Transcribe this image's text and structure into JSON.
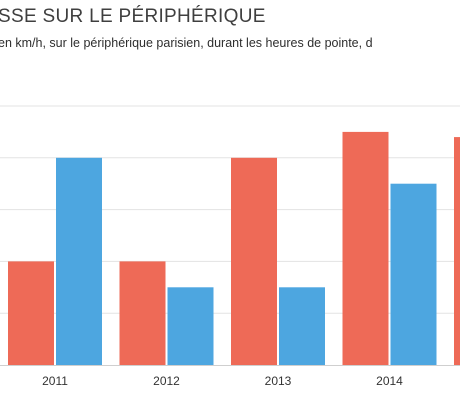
{
  "header": {
    "title": "SSE SUR LE PÉRIPHÉRIQUE",
    "subtitle": "en km/h, sur le périphérique parisien, durant les heures de pointe, d"
  },
  "chart_data": {
    "type": "bar",
    "title": "SSE SUR LE PÉRIPHÉRIQUE",
    "subtitle": "en km/h, sur le périphérique parisien, durant les heures de pointe, d",
    "categories": [
      "2011",
      "2012",
      "2013",
      "2014"
    ],
    "series": [
      {
        "color": "#ee6a57",
        "values": [
          20,
          20,
          40,
          45
        ]
      },
      {
        "color": "#4da6e0",
        "values": [
          40,
          15,
          15,
          35
        ]
      }
    ],
    "partial_next_value": 44,
    "ylim": [
      0,
      50
    ],
    "yticks": [
      0,
      10,
      20,
      30,
      40,
      50
    ],
    "grid": true,
    "legend": "none",
    "colors": {
      "grid": "#e3e3e3",
      "axis": "#cfcfcf",
      "text": "#333333"
    }
  }
}
